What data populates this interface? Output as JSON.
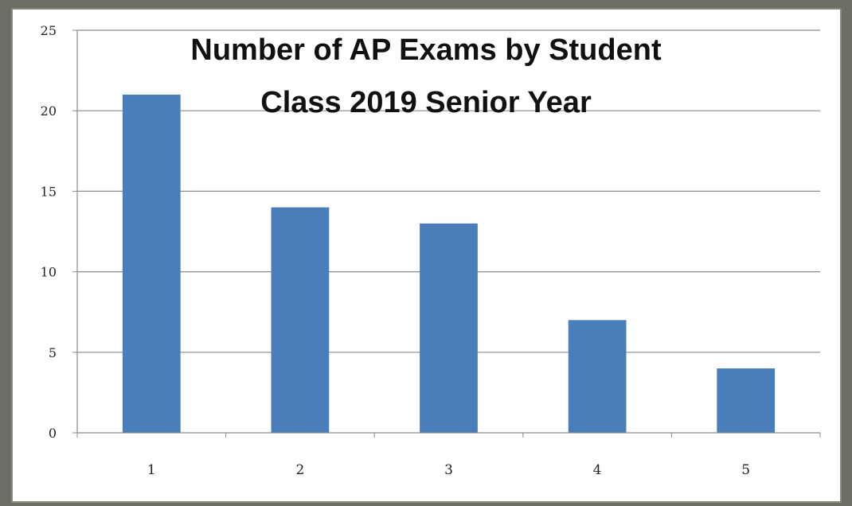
{
  "chart_data": {
    "type": "bar",
    "title_lines": [
      "Number of AP Exams by Student",
      "Class 2019 Senior Year"
    ],
    "categories": [
      "1",
      "2",
      "3",
      "4",
      "5"
    ],
    "values": [
      21,
      14,
      13,
      7,
      4
    ],
    "xlabel": "",
    "ylabel": "",
    "ylim": [
      0,
      25
    ],
    "yticks": [
      "0",
      "5",
      "10",
      "15",
      "20",
      "25"
    ],
    "grid": true,
    "legend": "none",
    "bar_color": "#4a7ebb"
  }
}
